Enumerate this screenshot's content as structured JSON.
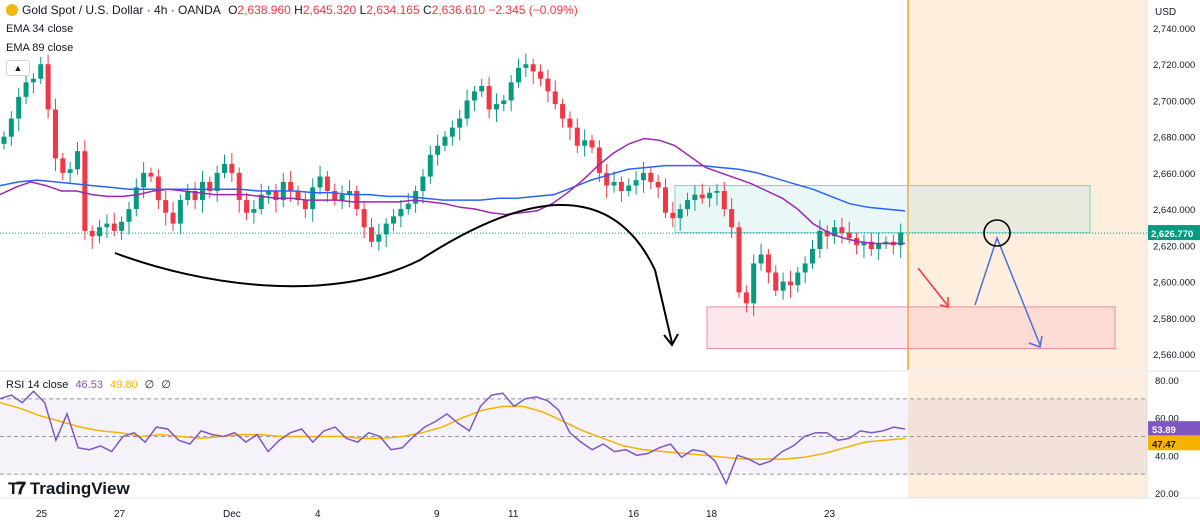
{
  "header": {
    "symbol": "Gold Spot / U.S. Dollar · 4h · OANDA",
    "ohlc": {
      "open_label": "O",
      "open": "2,638.960",
      "high_label": "H",
      "high": "2,645.320",
      "low_label": "L",
      "low": "2,634.165",
      "close_label": "C",
      "close": "2,636.610",
      "change": "−2.345 (−0.09%)"
    }
  },
  "indicators": [
    "EMA 34 close",
    "EMA 89 close"
  ],
  "rsi_panel": {
    "label": "RSI 14 close",
    "rsi_value": "46.53",
    "ma_value": "49.80",
    "extra1": "∅",
    "extra2": "∅",
    "badge_rsi": "53.89",
    "badge_ma": "47.47",
    "ticks": [
      "80.00",
      "60.00",
      "40.00",
      "20.00"
    ]
  },
  "price_axis": {
    "currency": "USD",
    "ticks": [
      "2,740.000",
      "2,720.000",
      "2,700.000",
      "2,680.000",
      "2,660.000",
      "2,640.000",
      "2,620.000",
      "2,600.000",
      "2,580.000",
      "2,560.000"
    ],
    "last_price": "2,626.770"
  },
  "time_axis": [
    "25",
    "27",
    "Dec",
    "4",
    "9",
    "11",
    "16",
    "18",
    "23"
  ],
  "brand": "TradingView",
  "colors": {
    "up": "#089981",
    "down": "#f23645",
    "ema34": "#9c27b0",
    "ema89": "#2962ff",
    "rsi": "#7e57c2",
    "rsi_ma": "#f5b300",
    "future_zone": "#fdeedd",
    "guide": "#f0a030"
  },
  "chart_data": [
    {
      "type": "candlestick",
      "title": "Gold Spot / U.S. Dollar · 4h · OANDA",
      "xlabel": "",
      "ylabel": "USD",
      "ylim": [
        2553,
        2749
      ],
      "x_ticks": [
        "25",
        "27",
        "Dec",
        "4",
        "9",
        "11",
        "16",
        "18",
        "23"
      ],
      "close": [
        2680,
        2690,
        2702,
        2710,
        2712,
        2720,
        2695,
        2668,
        2660,
        2662,
        2672,
        2628,
        2625,
        2630,
        2632,
        2628,
        2633,
        2640,
        2652,
        2660,
        2658,
        2645,
        2638,
        2632,
        2645,
        2650,
        2645,
        2655,
        2650,
        2660,
        2665,
        2660,
        2645,
        2638,
        2640,
        2648,
        2650,
        2645,
        2655,
        2650,
        2645,
        2640,
        2652,
        2658,
        2650,
        2645,
        2648,
        2650,
        2640,
        2630,
        2622,
        2626,
        2632,
        2636,
        2640,
        2643,
        2650,
        2658,
        2670,
        2675,
        2680,
        2685,
        2690,
        2700,
        2705,
        2708,
        2695,
        2698,
        2700,
        2710,
        2718,
        2720,
        2716,
        2712,
        2705,
        2698,
        2690,
        2685,
        2675,
        2678,
        2674,
        2660,
        2653,
        2655,
        2650,
        2653,
        2656,
        2660,
        2655,
        2652,
        2638,
        2635,
        2640,
        2645,
        2648,
        2646,
        2649,
        2650,
        2640,
        2630,
        2594,
        2588,
        2610,
        2615,
        2605,
        2595,
        2600,
        2598,
        2605,
        2610,
        2618,
        2628,
        2625,
        2630,
        2627,
        2624,
        2620,
        2622,
        2618,
        2621,
        2622,
        2620,
        2627
      ],
      "ema34": [
        2648,
        2652,
        2655,
        2653,
        2650,
        2650,
        2648,
        2647,
        2647,
        2648,
        2650,
        2651,
        2650,
        2649,
        2648,
        2648,
        2648,
        2647,
        2646,
        2646,
        2645,
        2645,
        2645,
        2644,
        2644,
        2644,
        2644,
        2645,
        2644,
        2643,
        2641,
        2640,
        2638,
        2637,
        2638,
        2639,
        2643,
        2649,
        2656,
        2664,
        2671,
        2676,
        2679,
        2678,
        2675,
        2669,
        2663,
        2660,
        2657,
        2654,
        2650,
        2646,
        2640,
        2632,
        2627,
        2624,
        2622,
        2621,
        2621,
        2621
      ],
      "ema89": [
        2653,
        2655,
        2656,
        2655,
        2654,
        2653,
        2652,
        2651,
        2651,
        2651,
        2651,
        2651,
        2651,
        2651,
        2650,
        2650,
        2650,
        2649,
        2649,
        2648,
        2648,
        2647,
        2647,
        2646,
        2645,
        2645,
        2645,
        2646,
        2646,
        2647,
        2648,
        2652,
        2656,
        2659,
        2662,
        2663,
        2664,
        2664,
        2664,
        2663,
        2662,
        2660,
        2657,
        2654,
        2651,
        2647,
        2643,
        2641,
        2640,
        2639
      ],
      "last_price": 2626.77
    },
    {
      "type": "line",
      "title": "RSI 14 close",
      "ylim": [
        10,
        85
      ],
      "ticks": [
        80,
        60,
        40,
        20
      ],
      "bands": [
        70,
        30
      ],
      "series": [
        {
          "name": "RSI 14 close",
          "values": [
            70,
            72,
            68,
            74,
            68,
            48,
            62,
            44,
            43,
            45,
            42,
            50,
            52,
            47,
            55,
            54,
            48,
            46,
            53,
            51,
            50,
            52,
            47,
            51,
            42,
            48,
            52,
            54,
            47,
            53,
            55,
            49,
            47,
            52,
            50,
            43,
            44,
            50,
            55,
            58,
            62,
            57,
            53,
            66,
            72,
            73,
            66,
            70,
            71,
            69,
            64,
            52,
            47,
            43,
            46,
            42,
            43,
            40,
            41,
            44,
            46,
            39,
            43,
            42,
            37,
            25,
            40,
            38,
            35,
            37,
            42,
            45,
            50,
            52,
            52,
            48,
            49,
            53,
            52,
            53,
            55,
            54
          ]
        },
        {
          "values": [
            68,
            65,
            61,
            58,
            55,
            53,
            52,
            50,
            51,
            50,
            49,
            50,
            51,
            51,
            50,
            50,
            50,
            50,
            49,
            49,
            50,
            52,
            55,
            60,
            64,
            66,
            66,
            63,
            58,
            53,
            49,
            45,
            43,
            42,
            41,
            40,
            39,
            38,
            38,
            38,
            39,
            41,
            44,
            47,
            48,
            49
          ]
        }
      ]
    }
  ]
}
